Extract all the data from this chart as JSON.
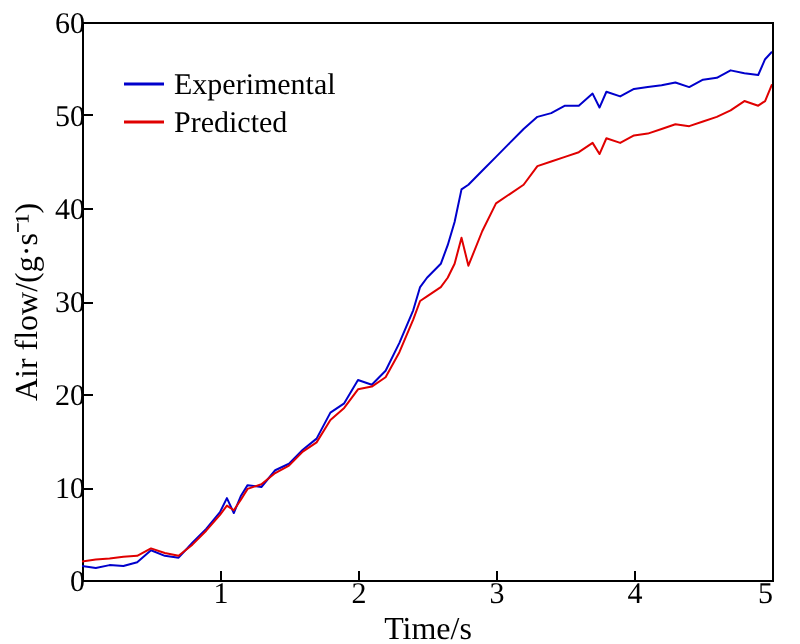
{
  "chart_data": {
    "type": "line",
    "xlabel": "Time/s",
    "ylabel": "Air flow/(g·s⁻¹)",
    "xlim": [
      0,
      5
    ],
    "xticks": [
      1,
      2,
      3,
      4,
      5
    ],
    "ylim": [
      0,
      60
    ],
    "yticks": [
      0,
      10,
      20,
      30,
      40,
      50,
      60
    ],
    "grid": false,
    "legend": "top left",
    "line_style": "solid",
    "marker": "none",
    "series": [
      {
        "name": "Experimental",
        "color": "#0000cc",
        "x": [
          0,
          0.1,
          0.2,
          0.3,
          0.4,
          0.5,
          0.6,
          0.7,
          0.8,
          0.9,
          1.0,
          1.05,
          1.1,
          1.15,
          1.2,
          1.3,
          1.4,
          1.5,
          1.6,
          1.7,
          1.8,
          1.9,
          2.0,
          2.1,
          2.2,
          2.3,
          2.4,
          2.45,
          2.5,
          2.6,
          2.65,
          2.7,
          2.75,
          2.8,
          2.9,
          3.0,
          3.1,
          3.2,
          3.3,
          3.4,
          3.5,
          3.6,
          3.7,
          3.75,
          3.8,
          3.9,
          4.0,
          4.1,
          4.2,
          4.3,
          4.4,
          4.5,
          4.6,
          4.7,
          4.8,
          4.9,
          4.95,
          5.0
        ],
        "values": [
          1.5,
          1.3,
          1.6,
          1.5,
          1.9,
          3.2,
          2.6,
          2.4,
          4.0,
          5.5,
          7.3,
          8.8,
          7.2,
          9.0,
          10.2,
          10.0,
          11.8,
          12.5,
          14.0,
          15.2,
          18.0,
          19.0,
          21.5,
          21.0,
          22.5,
          25.5,
          29.0,
          31.5,
          32.5,
          34.0,
          36.0,
          38.5,
          42.0,
          42.5,
          44.0,
          45.5,
          47.0,
          48.5,
          49.8,
          50.2,
          51.0,
          51.0,
          52.3,
          50.8,
          52.5,
          52.0,
          52.8,
          53.0,
          53.2,
          53.5,
          53.0,
          53.8,
          54.0,
          54.8,
          54.5,
          54.3,
          56.0,
          56.8
        ]
      },
      {
        "name": "Predicted",
        "color": "#e00000",
        "x": [
          0,
          0.1,
          0.2,
          0.3,
          0.4,
          0.5,
          0.6,
          0.7,
          0.8,
          0.9,
          1.0,
          1.05,
          1.1,
          1.15,
          1.2,
          1.3,
          1.4,
          1.5,
          1.6,
          1.7,
          1.8,
          1.9,
          2.0,
          2.1,
          2.2,
          2.3,
          2.4,
          2.45,
          2.5,
          2.6,
          2.65,
          2.7,
          2.75,
          2.8,
          2.9,
          3.0,
          3.1,
          3.2,
          3.3,
          3.4,
          3.5,
          3.6,
          3.7,
          3.75,
          3.8,
          3.9,
          4.0,
          4.1,
          4.2,
          4.3,
          4.4,
          4.5,
          4.6,
          4.7,
          4.8,
          4.9,
          4.95,
          5.0
        ],
        "values": [
          2.0,
          2.2,
          2.3,
          2.5,
          2.6,
          3.4,
          2.9,
          2.6,
          3.8,
          5.3,
          7.0,
          8.0,
          7.5,
          8.6,
          9.8,
          10.3,
          11.5,
          12.3,
          13.8,
          14.8,
          17.2,
          18.5,
          20.5,
          20.8,
          21.8,
          24.5,
          28.0,
          30.0,
          30.5,
          31.5,
          32.5,
          34.0,
          36.8,
          33.8,
          37.5,
          40.5,
          41.5,
          42.5,
          44.5,
          45.0,
          45.5,
          46.0,
          47.0,
          45.8,
          47.5,
          47.0,
          47.8,
          48.0,
          48.5,
          49.0,
          48.8,
          49.3,
          49.8,
          50.5,
          51.5,
          51.0,
          51.5,
          53.3
        ]
      }
    ]
  }
}
